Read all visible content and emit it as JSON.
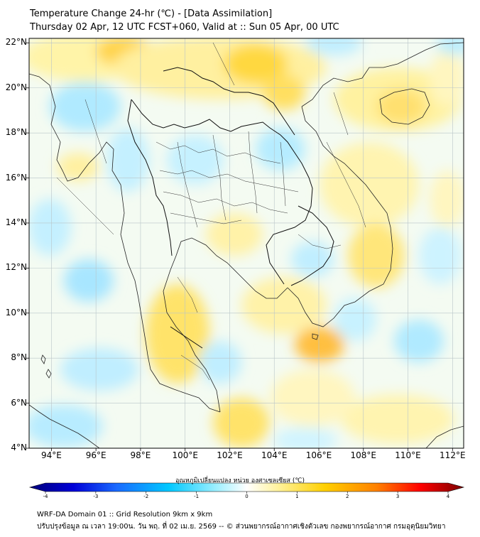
{
  "title": {
    "line1": "Temperature Change 24-hr (℃) - [Data Assimilation]",
    "line2": "Thursday 02 Apr, 12 UTC FCST+060, Valid at :: Sun 05 Apr, 00 UTC"
  },
  "map": {
    "lat_labels": [
      "22°N",
      "20°N",
      "18°N",
      "16°N",
      "14°N",
      "12°N",
      "10°N",
      "8°N",
      "6°N",
      "4°N"
    ],
    "lon_labels": [
      "94°E",
      "96°E",
      "98°E",
      "100°E",
      "102°E",
      "104°E",
      "106°E",
      "108°E",
      "110°E",
      "112°E"
    ],
    "lat_values": [
      22,
      20,
      18,
      16,
      14,
      12,
      10,
      8,
      6,
      4
    ],
    "lon_values": [
      94,
      96,
      98,
      100,
      102,
      104,
      106,
      108,
      110,
      112
    ],
    "extent": {
      "lon_min": 93.0,
      "lon_max": 112.5,
      "lat_min": 4.0,
      "lat_max": 22.2
    }
  },
  "colorbar": {
    "title": "อุณหภูมิเปลี่ยนแปลง หน่วย องศาเซลเซียส (℃)",
    "tick_labels": [
      "-4",
      "-3",
      "-2",
      "-1",
      "0",
      "1",
      "2",
      "3",
      "4"
    ],
    "tick_values": [
      -4,
      -3,
      -2,
      -1,
      0,
      1,
      2,
      3,
      4
    ],
    "range": [
      -4,
      4
    ],
    "colors": [
      "#00007a",
      "#0000d8",
      "#1a6aff",
      "#00c8ff",
      "#9ef0ff",
      "#ffffff",
      "#fff3a0",
      "#ffd000",
      "#ff8000",
      "#ff0000",
      "#7a0000"
    ]
  },
  "footer": {
    "line1": "WRF-DA Domain 01 :: Grid Resolution 9km x 9km",
    "line2": "ปรับปรุงข้อมูล ณ เวลา 19:00น. วัน พฤ. ที่ 02 เม.ย. 2569 -- © ส่วนพยากรณ์อากาศเชิงตัวเลข กองพยากรณ์อากาศ กรมอุตุนิยมวิทยา"
  }
}
